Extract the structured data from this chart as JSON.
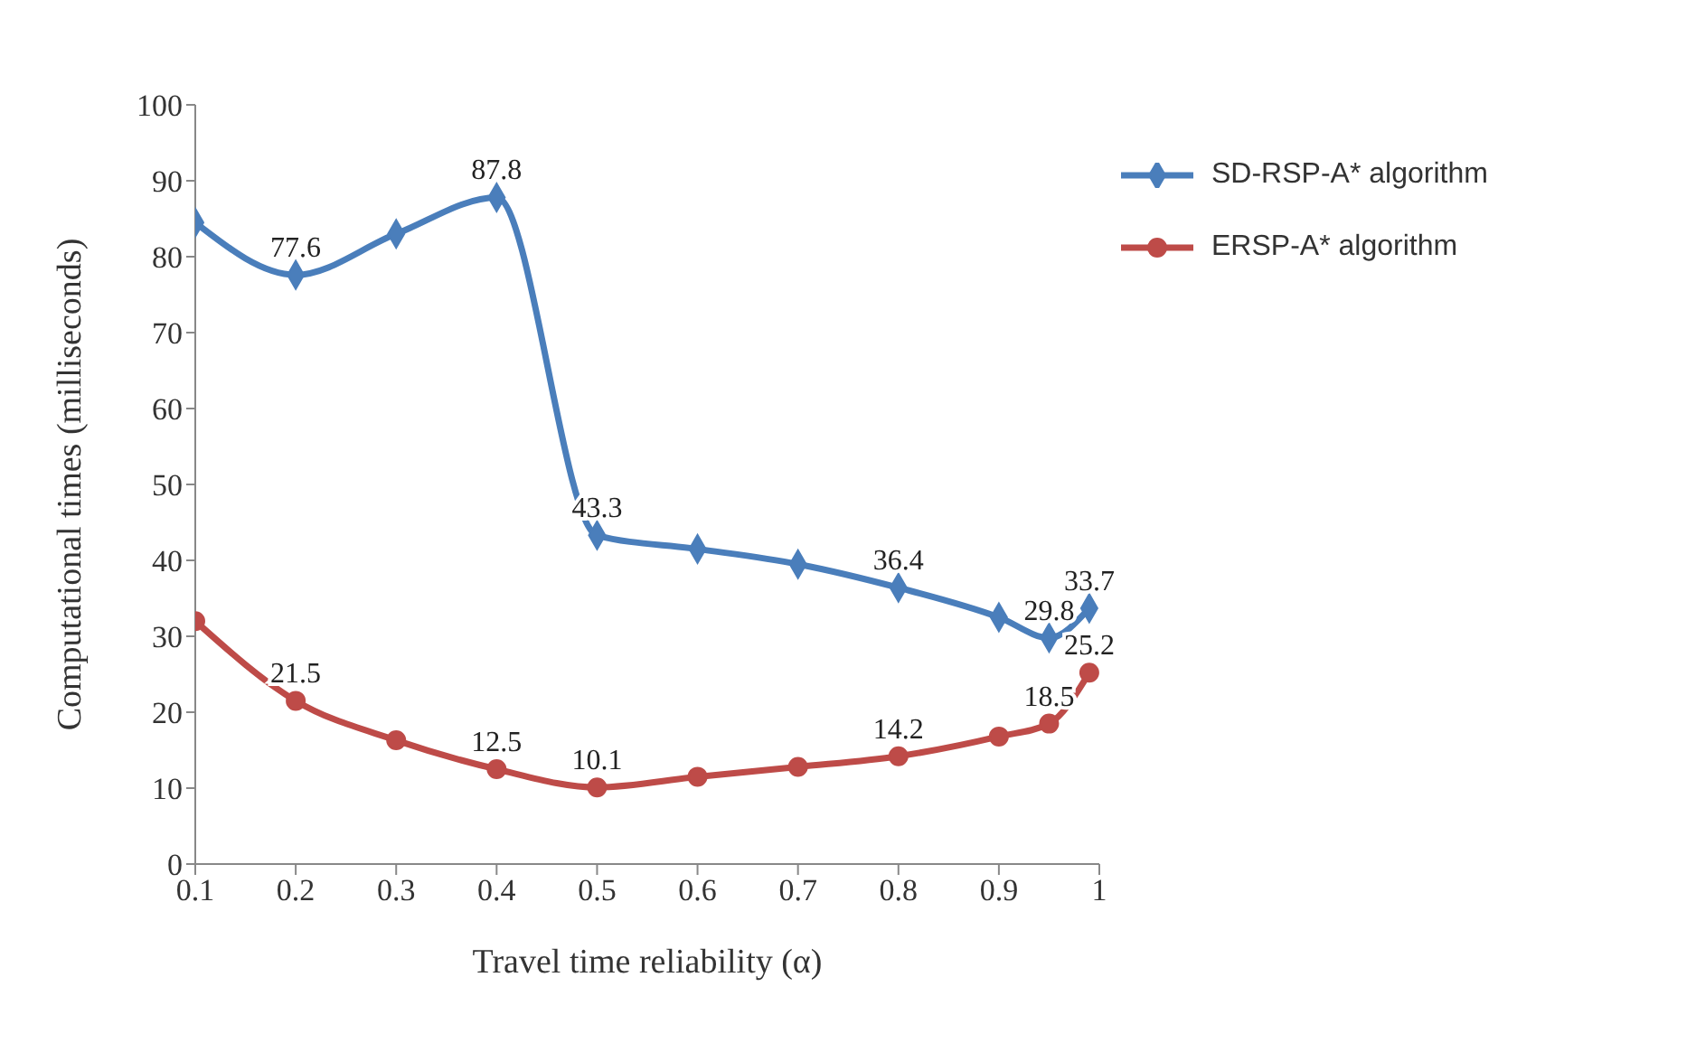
{
  "chart_data": {
    "type": "line",
    "xlabel": "Travel time reliability  (α)",
    "ylabel": "Computational times (milliseconds)",
    "x": [
      0.1,
      0.2,
      0.3,
      0.4,
      0.5,
      0.6,
      0.7,
      0.8,
      0.9,
      0.95,
      0.99
    ],
    "series": [
      {
        "name": "SD-RSP-A* algorithm",
        "color": "#4a7ebb",
        "marker": "diamond",
        "values": [
          84.5,
          77.6,
          83,
          87.8,
          43.3,
          41.5,
          39.5,
          36.4,
          32.5,
          29.8,
          33.7
        ],
        "value_labels": [
          null,
          "77.6",
          null,
          "87.8",
          "43.3",
          null,
          null,
          "36.4",
          null,
          "29.8",
          "33.7"
        ]
      },
      {
        "name": "ERSP-A* algorithm",
        "color": "#be4b48",
        "marker": "circle",
        "values": [
          32,
          21.5,
          16.3,
          12.5,
          10.1,
          11.5,
          12.8,
          14.2,
          16.8,
          18.5,
          25.2
        ],
        "value_labels": [
          null,
          "21.5",
          null,
          "12.5",
          "10.1",
          null,
          null,
          "14.2",
          null,
          "18.5",
          "25.2"
        ]
      }
    ],
    "xlim": [
      0.1,
      1
    ],
    "xticks": [
      0.1,
      0.2,
      0.3,
      0.4,
      0.5,
      0.6,
      0.7,
      0.8,
      0.9,
      1
    ],
    "ylim": [
      0,
      100
    ],
    "yticks": [
      0,
      10,
      20,
      30,
      40,
      50,
      60,
      70,
      80,
      90,
      100
    ],
    "grid": false,
    "legend": "top right",
    "line_style": "solid"
  }
}
